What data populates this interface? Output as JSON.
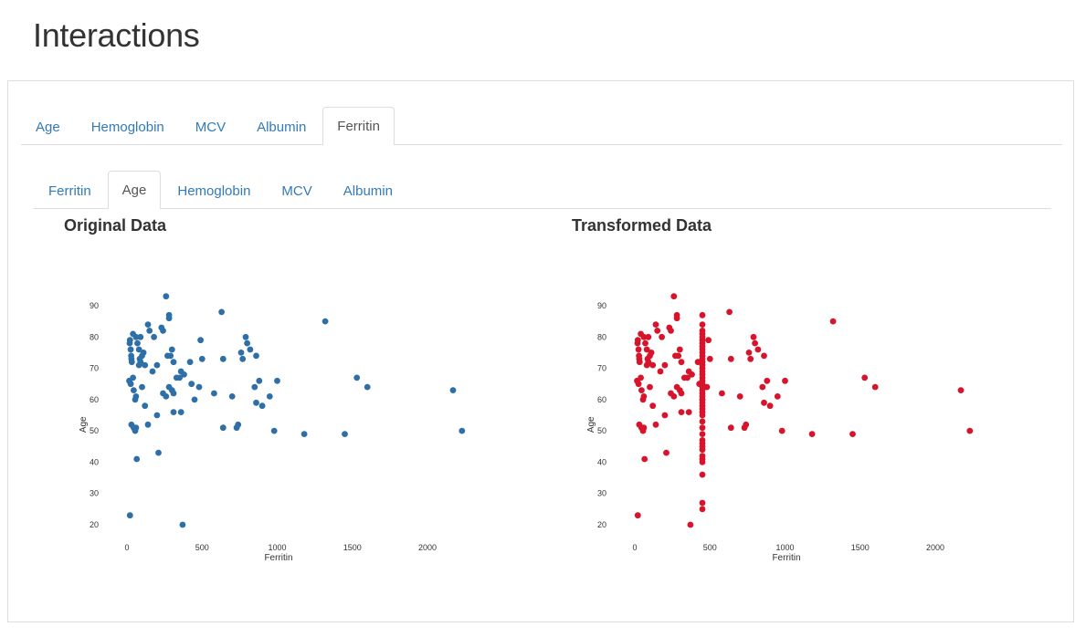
{
  "page": {
    "title": "Interactions"
  },
  "outer_tabs": [
    {
      "label": "Age",
      "active": false
    },
    {
      "label": "Hemoglobin",
      "active": false
    },
    {
      "label": "MCV",
      "active": false
    },
    {
      "label": "Albumin",
      "active": false
    },
    {
      "label": "Ferritin",
      "active": true
    }
  ],
  "inner_tabs": [
    {
      "label": "Ferritin",
      "active": false
    },
    {
      "label": "Age",
      "active": true
    },
    {
      "label": "Hemoglobin",
      "active": false
    },
    {
      "label": "MCV",
      "active": false
    },
    {
      "label": "Albumin",
      "active": false
    }
  ],
  "plots": {
    "original_title": "Original Data",
    "transformed_title": "Transformed Data"
  },
  "chart_data": [
    {
      "type": "scatter",
      "title": "Original Data",
      "xlabel": "Ferritin",
      "ylabel": "Age",
      "color": "#2f6fa8",
      "xlim": [
        -40,
        2250
      ],
      "ylim": [
        17,
        95
      ],
      "xticks": [
        0,
        500,
        1000,
        1500,
        2000
      ],
      "yticks": [
        20,
        30,
        40,
        50,
        60,
        70,
        80,
        90
      ],
      "points": [
        [
          20,
          79
        ],
        [
          18,
          78
        ],
        [
          25,
          76
        ],
        [
          28,
          74
        ],
        [
          30,
          73
        ],
        [
          32,
          72
        ],
        [
          15,
          66
        ],
        [
          25,
          65
        ],
        [
          40,
          67
        ],
        [
          45,
          63
        ],
        [
          55,
          60
        ],
        [
          60,
          61
        ],
        [
          30,
          52
        ],
        [
          45,
          51
        ],
        [
          55,
          50
        ],
        [
          60,
          51
        ],
        [
          65,
          41
        ],
        [
          20,
          23
        ],
        [
          40,
          81
        ],
        [
          60,
          80
        ],
        [
          70,
          78
        ],
        [
          80,
          76
        ],
        [
          85,
          73
        ],
        [
          90,
          72
        ],
        [
          100,
          74
        ],
        [
          110,
          75
        ],
        [
          90,
          80
        ],
        [
          140,
          84
        ],
        [
          150,
          82
        ],
        [
          180,
          80
        ],
        [
          200,
          71
        ],
        [
          120,
          71
        ],
        [
          80,
          71
        ],
        [
          170,
          69
        ],
        [
          100,
          64
        ],
        [
          120,
          58
        ],
        [
          140,
          52
        ],
        [
          200,
          55
        ],
        [
          210,
          43
        ],
        [
          230,
          83
        ],
        [
          240,
          82
        ],
        [
          260,
          93
        ],
        [
          280,
          87
        ],
        [
          280,
          86
        ],
        [
          270,
          74
        ],
        [
          290,
          74
        ],
        [
          300,
          76
        ],
        [
          310,
          72
        ],
        [
          240,
          62
        ],
        [
          260,
          61
        ],
        [
          280,
          64
        ],
        [
          300,
          63
        ],
        [
          310,
          62
        ],
        [
          330,
          67
        ],
        [
          350,
          67
        ],
        [
          360,
          69
        ],
        [
          380,
          68
        ],
        [
          310,
          56
        ],
        [
          360,
          56
        ],
        [
          370,
          20
        ],
        [
          420,
          72
        ],
        [
          430,
          65
        ],
        [
          450,
          60
        ],
        [
          480,
          64
        ],
        [
          490,
          79
        ],
        [
          500,
          73
        ],
        [
          580,
          62
        ],
        [
          630,
          88
        ],
        [
          640,
          73
        ],
        [
          640,
          51
        ],
        [
          700,
          61
        ],
        [
          730,
          51
        ],
        [
          740,
          52
        ],
        [
          760,
          75
        ],
        [
          770,
          73
        ],
        [
          790,
          80
        ],
        [
          800,
          78
        ],
        [
          820,
          76
        ],
        [
          860,
          74
        ],
        [
          850,
          64
        ],
        [
          860,
          59
        ],
        [
          880,
          66
        ],
        [
          900,
          58
        ],
        [
          950,
          61
        ],
        [
          980,
          50
        ],
        [
          1000,
          66
        ],
        [
          1180,
          49
        ],
        [
          1320,
          85
        ],
        [
          1450,
          49
        ],
        [
          1530,
          67
        ],
        [
          1600,
          64
        ],
        [
          2170,
          63
        ],
        [
          2230,
          50
        ]
      ]
    },
    {
      "type": "scatter",
      "title": "Transformed Data",
      "xlabel": "Ferritin",
      "ylabel": "Age",
      "color": "#d7142b",
      "xlim": [
        -40,
        2250
      ],
      "ylim": [
        17,
        95
      ],
      "xticks": [
        0,
        500,
        1000,
        1500,
        2000
      ],
      "yticks": [
        20,
        30,
        40,
        50,
        60,
        70,
        80,
        90
      ],
      "points": [
        [
          20,
          79
        ],
        [
          18,
          78
        ],
        [
          25,
          76
        ],
        [
          28,
          74
        ],
        [
          30,
          73
        ],
        [
          32,
          72
        ],
        [
          15,
          66
        ],
        [
          25,
          65
        ],
        [
          40,
          67
        ],
        [
          45,
          63
        ],
        [
          55,
          60
        ],
        [
          60,
          61
        ],
        [
          30,
          52
        ],
        [
          45,
          51
        ],
        [
          55,
          50
        ],
        [
          60,
          51
        ],
        [
          65,
          41
        ],
        [
          20,
          23
        ],
        [
          40,
          81
        ],
        [
          60,
          80
        ],
        [
          70,
          78
        ],
        [
          80,
          76
        ],
        [
          85,
          73
        ],
        [
          90,
          72
        ],
        [
          100,
          74
        ],
        [
          110,
          75
        ],
        [
          90,
          80
        ],
        [
          140,
          84
        ],
        [
          150,
          82
        ],
        [
          180,
          80
        ],
        [
          200,
          71
        ],
        [
          120,
          71
        ],
        [
          80,
          71
        ],
        [
          170,
          69
        ],
        [
          100,
          64
        ],
        [
          120,
          58
        ],
        [
          140,
          52
        ],
        [
          200,
          55
        ],
        [
          210,
          43
        ],
        [
          230,
          83
        ],
        [
          240,
          82
        ],
        [
          260,
          93
        ],
        [
          280,
          87
        ],
        [
          280,
          86
        ],
        [
          270,
          74
        ],
        [
          290,
          74
        ],
        [
          300,
          76
        ],
        [
          310,
          72
        ],
        [
          240,
          62
        ],
        [
          260,
          61
        ],
        [
          280,
          64
        ],
        [
          300,
          63
        ],
        [
          310,
          62
        ],
        [
          330,
          67
        ],
        [
          350,
          67
        ],
        [
          360,
          69
        ],
        [
          380,
          68
        ],
        [
          310,
          56
        ],
        [
          360,
          56
        ],
        [
          370,
          20
        ],
        [
          420,
          72
        ],
        [
          430,
          65
        ],
        [
          450,
          60
        ],
        [
          480,
          64
        ],
        [
          490,
          79
        ],
        [
          500,
          73
        ],
        [
          580,
          62
        ],
        [
          630,
          88
        ],
        [
          640,
          73
        ],
        [
          640,
          51
        ],
        [
          700,
          61
        ],
        [
          730,
          51
        ],
        [
          740,
          52
        ],
        [
          760,
          75
        ],
        [
          770,
          73
        ],
        [
          790,
          80
        ],
        [
          800,
          78
        ],
        [
          820,
          76
        ],
        [
          860,
          74
        ],
        [
          850,
          64
        ],
        [
          860,
          59
        ],
        [
          880,
          66
        ],
        [
          900,
          58
        ],
        [
          950,
          61
        ],
        [
          980,
          50
        ],
        [
          1000,
          66
        ],
        [
          1180,
          49
        ],
        [
          1320,
          85
        ],
        [
          1450,
          49
        ],
        [
          1530,
          67
        ],
        [
          1600,
          64
        ],
        [
          2170,
          63
        ],
        [
          2230,
          50
        ],
        [
          450,
          87
        ],
        [
          450,
          84
        ],
        [
          450,
          82
        ],
        [
          450,
          81
        ],
        [
          450,
          80
        ],
        [
          450,
          79
        ],
        [
          450,
          78
        ],
        [
          450,
          77
        ],
        [
          450,
          76
        ],
        [
          450,
          75
        ],
        [
          450,
          74
        ],
        [
          450,
          73
        ],
        [
          450,
          72
        ],
        [
          450,
          71
        ],
        [
          450,
          70
        ],
        [
          450,
          69
        ],
        [
          450,
          68
        ],
        [
          450,
          67
        ],
        [
          450,
          66
        ],
        [
          450,
          65
        ],
        [
          450,
          64
        ],
        [
          450,
          63
        ],
        [
          450,
          62
        ],
        [
          450,
          61
        ],
        [
          450,
          60
        ],
        [
          450,
          59
        ],
        [
          450,
          58
        ],
        [
          450,
          57
        ],
        [
          450,
          56
        ],
        [
          450,
          55
        ],
        [
          450,
          53
        ],
        [
          450,
          51
        ],
        [
          450,
          49
        ],
        [
          450,
          47
        ],
        [
          450,
          46
        ],
        [
          450,
          45
        ],
        [
          450,
          44
        ],
        [
          450,
          42
        ],
        [
          450,
          41
        ],
        [
          450,
          40
        ],
        [
          450,
          36
        ],
        [
          450,
          27
        ],
        [
          450,
          25
        ]
      ]
    }
  ]
}
